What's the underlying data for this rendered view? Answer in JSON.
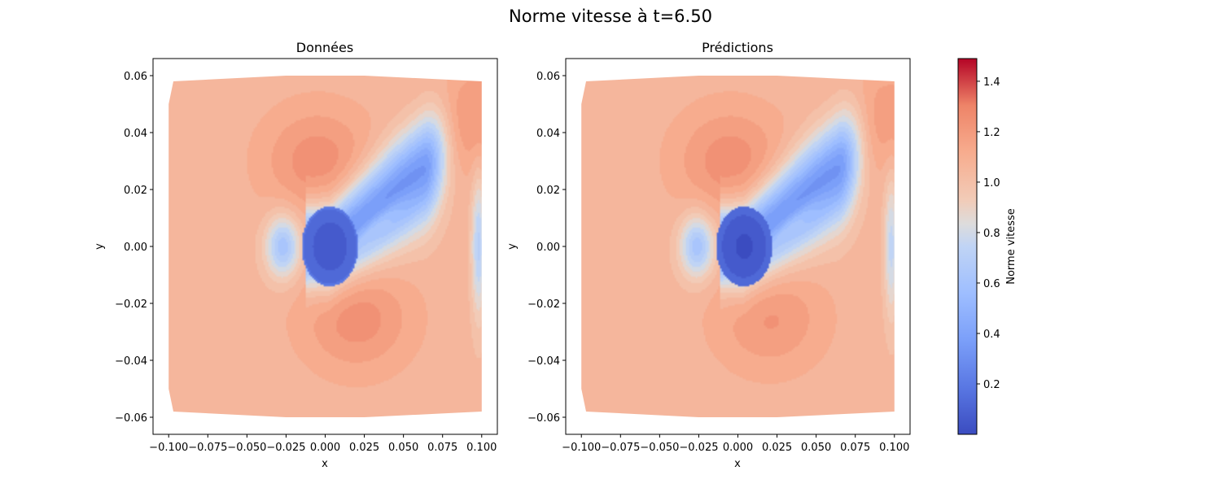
{
  "figure": {
    "suptitle": "Norme vitesse à t=6.50"
  },
  "chart_data": [
    {
      "type": "heatmap",
      "title": "Données",
      "xlabel": "x",
      "ylabel": "y",
      "xlim": [
        -0.11,
        0.11
      ],
      "ylim": [
        -0.066,
        0.066
      ],
      "xticks": [
        -0.1,
        -0.075,
        -0.05,
        -0.025,
        0.0,
        0.025,
        0.05,
        0.075,
        0.1
      ],
      "xtick_labels": [
        "−0.100",
        "−0.075",
        "−0.050",
        "−0.025",
        "0.000",
        "0.025",
        "0.050",
        "0.075",
        "0.100"
      ],
      "yticks": [
        0.06,
        0.04,
        0.02,
        0.0,
        -0.02,
        -0.04,
        -0.06
      ],
      "ytick_labels": [
        "0.06",
        "0.04",
        "0.02",
        "0.00",
        "−0.02",
        "−0.04",
        "−0.06"
      ],
      "domain_outline": [
        [
          -0.1,
          0.05
        ],
        [
          -0.097,
          0.058
        ],
        [
          -0.025,
          0.06
        ],
        [
          0.025,
          0.06
        ],
        [
          0.1,
          0.058
        ],
        [
          0.1,
          -0.058
        ],
        [
          0.025,
          -0.06
        ],
        [
          -0.025,
          -0.06
        ],
        [
          -0.097,
          -0.058
        ],
        [
          -0.1,
          -0.05
        ]
      ],
      "features": {
        "background": 1.05,
        "obstacle_center": [
          0.003,
          0.0
        ],
        "obstacle_value": 0.05,
        "wake_direction": "upper-right",
        "wake_min": 0.3,
        "wake_tip": [
          0.055,
          0.032
        ],
        "accelerated_regions": [
          [
            -0.005,
            0.03,
            1.25
          ],
          [
            0.02,
            -0.025,
            1.25
          ],
          [
            0.095,
            0.045,
            1.22
          ]
        ],
        "outlet_low_speed": [
          0.098,
          0.0,
          0.7
        ]
      }
    },
    {
      "type": "heatmap",
      "title": "Prédictions",
      "xlabel": "x",
      "ylabel": "y",
      "xlim": [
        -0.11,
        0.11
      ],
      "ylim": [
        -0.066,
        0.066
      ],
      "xticks": [
        -0.1,
        -0.075,
        -0.05,
        -0.025,
        0.0,
        0.025,
        0.05,
        0.075,
        0.1
      ],
      "xtick_labels": [
        "−0.100",
        "−0.075",
        "−0.050",
        "−0.025",
        "0.000",
        "0.025",
        "0.050",
        "0.075",
        "0.100"
      ],
      "yticks": [
        0.06,
        0.04,
        0.02,
        0.0,
        -0.02,
        -0.04,
        -0.06
      ],
      "ytick_labels": [
        "0.06",
        "0.04",
        "0.02",
        "0.00",
        "−0.02",
        "−0.04",
        "−0.06"
      ],
      "domain_outline": [
        [
          -0.1,
          0.05
        ],
        [
          -0.097,
          0.058
        ],
        [
          -0.025,
          0.06
        ],
        [
          0.025,
          0.06
        ],
        [
          0.1,
          0.058
        ],
        [
          0.1,
          -0.058
        ],
        [
          0.025,
          -0.06
        ],
        [
          -0.025,
          -0.06
        ],
        [
          -0.097,
          -0.058
        ],
        [
          -0.1,
          -0.05
        ]
      ],
      "features": {
        "background": 1.05,
        "obstacle_center": [
          0.004,
          0.0
        ],
        "obstacle_value": 0.02,
        "wake_direction": "upper-right",
        "wake_min": 0.3,
        "wake_tip": [
          0.055,
          0.032
        ],
        "accelerated_regions": [
          [
            -0.005,
            0.03,
            1.25
          ],
          [
            0.02,
            -0.025,
            1.22
          ],
          [
            0.095,
            0.045,
            1.2
          ]
        ],
        "outlet_low_speed": [
          0.098,
          0.0,
          0.75
        ]
      }
    }
  ],
  "colorbar": {
    "label": "Norme vitesse",
    "colormap": "coolwarm",
    "range": [
      0.0,
      1.49
    ],
    "ticks": [
      0.2,
      0.4,
      0.6,
      0.8,
      1.0,
      1.2,
      1.4
    ],
    "tick_labels": [
      "0.2",
      "0.4",
      "0.6",
      "0.8",
      "1.0",
      "1.2",
      "1.4"
    ],
    "color_min": "#3b4cc0",
    "color_mid": "#dddcdc",
    "color_max": "#b40426"
  }
}
